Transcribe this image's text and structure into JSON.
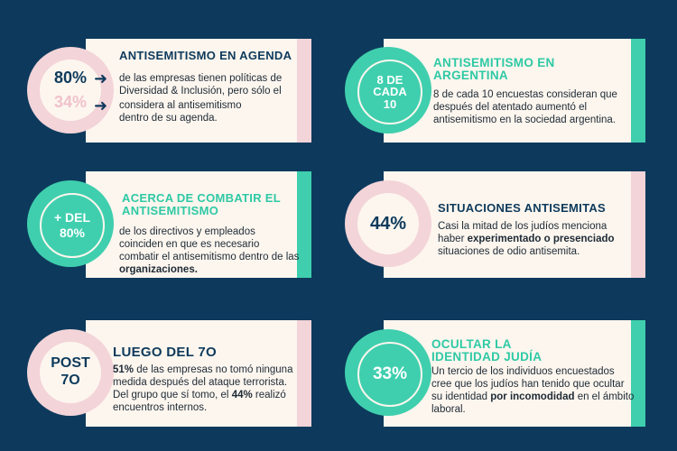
{
  "cards": [
    {
      "title": "ANTISEMITISMO EN AGENDA",
      "stat_primary": "80%",
      "stat_secondary": "34%",
      "line1": "de las empresas tienen políticas de Diversidad & Inclusión, pero sólo el",
      "line2": "considera al antisemitismo dentro de su agenda."
    },
    {
      "title": "ANTISEMITISMO EN ARGENTINA",
      "badge_l1": "8 DE",
      "badge_l2": "CADA",
      "badge_l3": "10",
      "text": "8 de cada 10 encuestas consideran que después del atentado aumentó el antisemitismo en la sociedad argentina."
    },
    {
      "title": "ACERCA DE COMBATIR EL ANTISEMITISMO",
      "badge_l1": "+ DEL",
      "badge_l2": "80%",
      "text_a": "de los directivos y empleados coinciden en que es necesario combatir el antisemitismo dentro de las ",
      "text_b": "organizaciones."
    },
    {
      "title": "SITUACIONES ANTISEMITAS",
      "badge": "44%",
      "text_a": "Casi la mitad de los judíos menciona haber ",
      "text_b": "experimentado o presenciado",
      "text_c": " situaciones de odio antisemita."
    },
    {
      "title": "LUEGO DEL 7O",
      "badge_l1": "POST",
      "badge_l2": "7O",
      "pct1": "51%",
      "text_a": " de las empresas no tomó ninguna medida después del ataque terrorista. Del grupo que sí tomo, el ",
      "pct2": "44%",
      "text_b": " realizó encuentros internos."
    },
    {
      "title": "OCULTAR LA IDENTIDAD JUDÍA",
      "badge": "33%",
      "text_a": "Un tercio de los individuos encuestados cree que los judíos han tenido que ocultar su identidad ",
      "text_b": "por incomodidad",
      "text_c": " en el ámbito laboral."
    }
  ],
  "colors": {
    "background": "#0d3a5c",
    "card": "#fdf6ee",
    "pink": "#f3d4d9",
    "teal": "#3fcfae",
    "navy": "#0d3a5c"
  }
}
